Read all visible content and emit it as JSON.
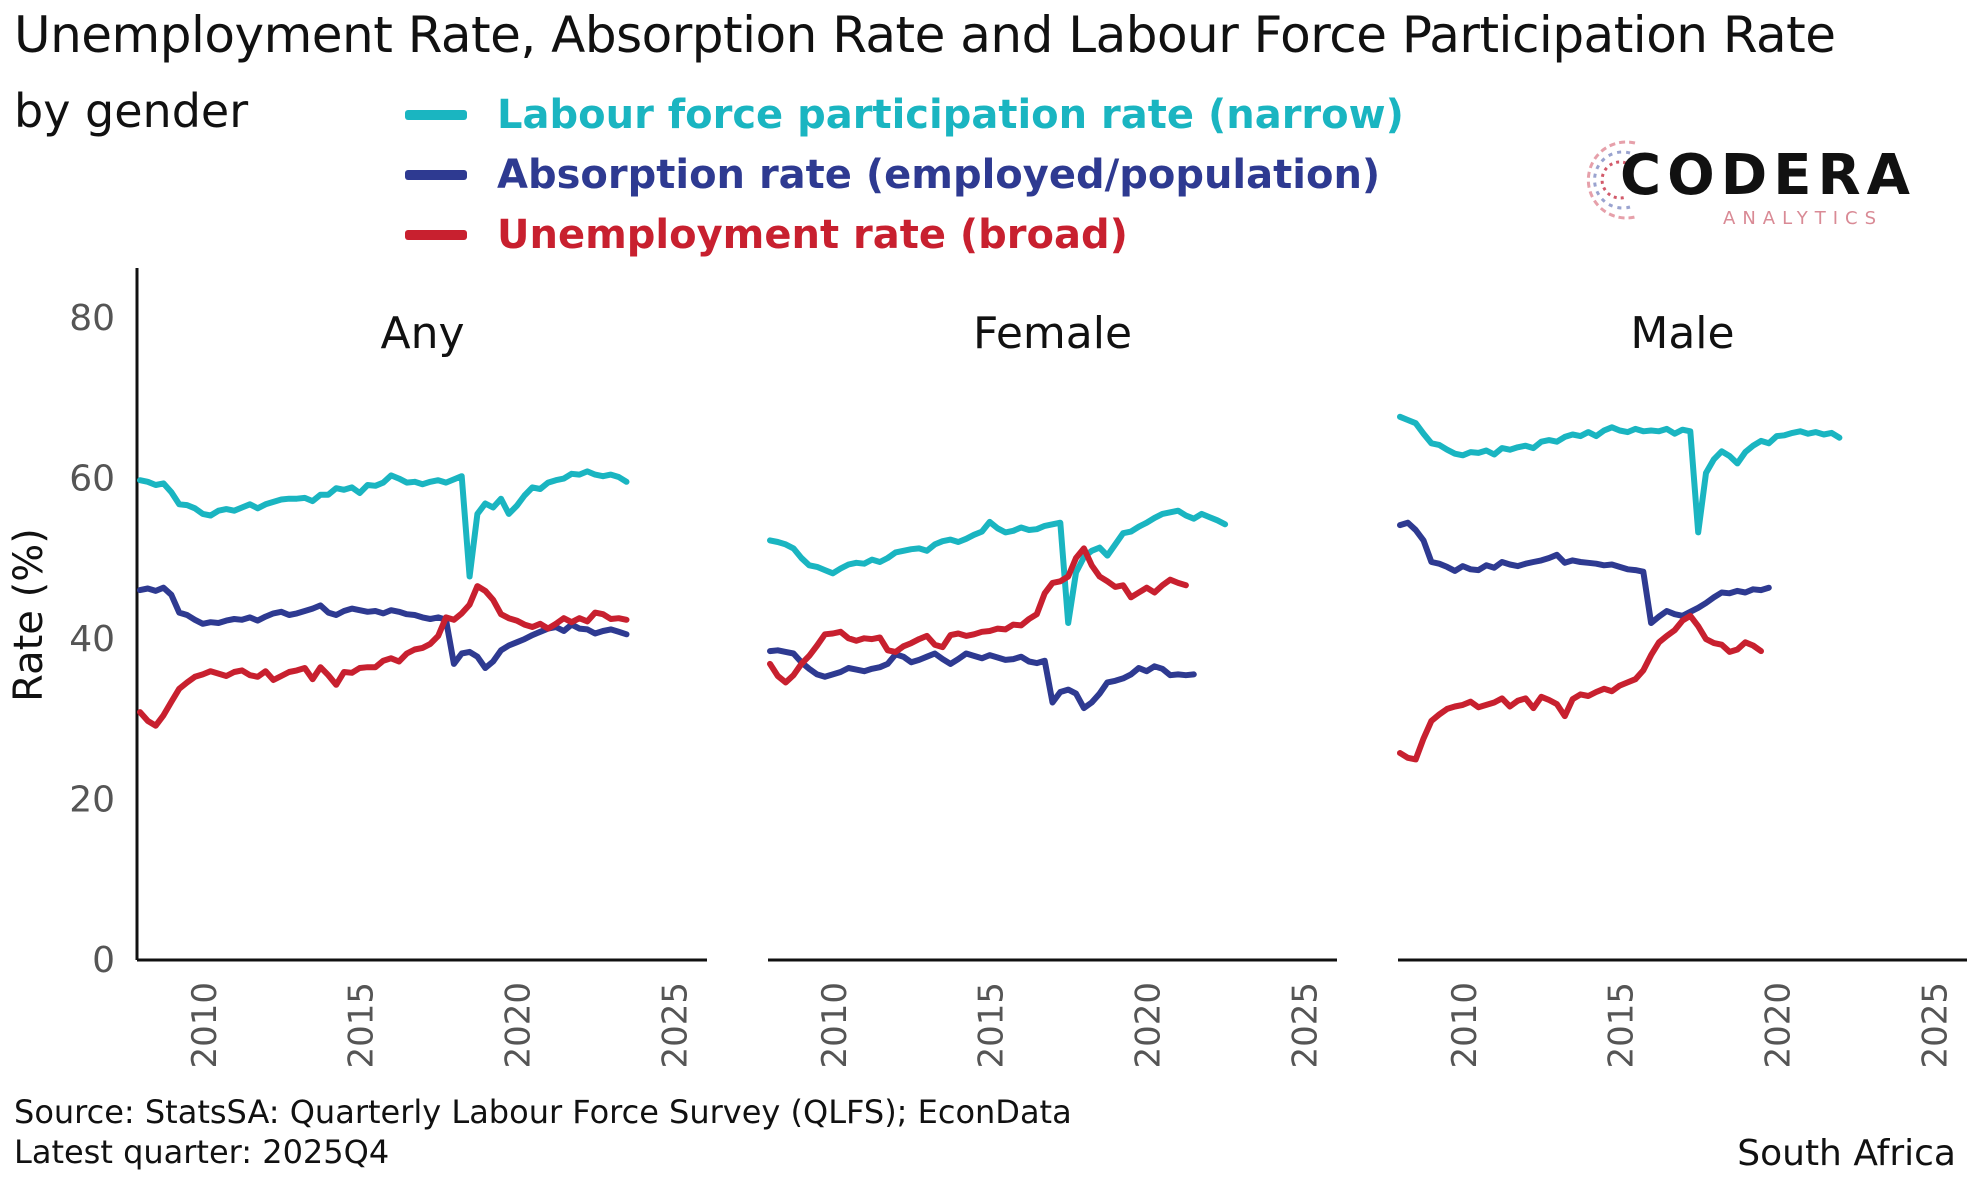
{
  "header": {
    "title": "Unemployment Rate, Absorption Rate and Labour Force Participation Rate",
    "subtitle": "by gender"
  },
  "legend": [
    {
      "label": "Labour force participation rate (narrow)",
      "color": "#1ab5c1"
    },
    {
      "label": "Absorption rate (employed/population)",
      "color": "#2e3a91"
    },
    {
      "label": "Unemployment rate (broad)",
      "color": "#c8202f"
    }
  ],
  "logo": {
    "name": "CODERA",
    "sub": "ANALYTICS"
  },
  "footer": {
    "source": "Source: StatsSA: Quarterly Labour Force Survey (QLFS); EconData",
    "latest": "Latest quarter: 2025Q4",
    "region": "South Africa"
  },
  "chart_data": {
    "type": "line",
    "ylabel": "Rate (%)",
    "ylim": [
      0,
      86
    ],
    "yticks": [
      0,
      20,
      40,
      60,
      80
    ],
    "xlim": [
      2008.0,
      2026.0
    ],
    "xticks": [
      2010,
      2015,
      2020,
      2025
    ],
    "x_start": 2008.0,
    "x_step": 0.25,
    "panels": [
      {
        "title": "Any",
        "series": [
          {
            "name": "Labour force participation rate (narrow)",
            "color": "#1ab5c1",
            "values": [
              59.8,
              59.6,
              59.2,
              59.4,
              58.3,
              56.8,
              56.7,
              56.3,
              55.6,
              55.4,
              56.0,
              56.2,
              56.0,
              56.4,
              56.8,
              56.3,
              56.8,
              57.1,
              57.4,
              57.5,
              57.5,
              57.6,
              57.2,
              58.0,
              58.0,
              58.8,
              58.6,
              58.9,
              58.2,
              59.2,
              59.1,
              59.5,
              60.4,
              60.0,
              59.5,
              59.6,
              59.3,
              59.6,
              59.8,
              59.5,
              59.9,
              60.3,
              47.8,
              55.6,
              56.9,
              56.4,
              57.5,
              55.6,
              56.6,
              57.9,
              58.9,
              58.7,
              59.5,
              59.8,
              60.0,
              60.6,
              60.5,
              60.9,
              60.5,
              60.3,
              60.5,
              60.2,
              59.6
            ]
          },
          {
            "name": "Absorption rate (employed/population)",
            "color": "#2e3a91",
            "values": [
              46.1,
              46.3,
              46.0,
              46.4,
              45.5,
              43.3,
              43.0,
              42.4,
              41.9,
              42.1,
              42.0,
              42.3,
              42.5,
              42.4,
              42.7,
              42.3,
              42.8,
              43.2,
              43.4,
              43.0,
              43.2,
              43.5,
              43.8,
              44.2,
              43.3,
              43.0,
              43.5,
              43.8,
              43.6,
              43.4,
              43.5,
              43.2,
              43.6,
              43.4,
              43.1,
              43.0,
              42.7,
              42.5,
              42.7,
              42.4,
              36.9,
              38.2,
              38.4,
              37.8,
              36.4,
              37.2,
              38.6,
              39.2,
              39.6,
              40.0,
              40.5,
              40.9,
              41.3,
              41.5,
              41.0,
              41.8,
              41.3,
              41.2,
              40.7,
              41.0,
              41.2,
              40.9,
              40.6
            ]
          },
          {
            "name": "Unemployment rate (broad)",
            "color": "#c8202f",
            "values": [
              30.9,
              29.8,
              29.2,
              30.5,
              32.2,
              33.8,
              34.6,
              35.3,
              35.6,
              36.0,
              35.7,
              35.4,
              35.9,
              36.1,
              35.5,
              35.3,
              36.0,
              34.9,
              35.4,
              35.9,
              36.1,
              36.4,
              35.0,
              36.5,
              35.5,
              34.3,
              35.9,
              35.8,
              36.4,
              36.5,
              36.5,
              37.3,
              37.6,
              37.2,
              38.2,
              38.7,
              38.9,
              39.4,
              40.4,
              42.7,
              42.4,
              43.2,
              44.3,
              46.6,
              46.0,
              44.9,
              43.1,
              42.6,
              42.3,
              41.8,
              41.5,
              41.9,
              41.3,
              41.9,
              42.6,
              42.1,
              42.6,
              42.2,
              43.3,
              43.1,
              42.5,
              42.6,
              42.4
            ]
          }
        ]
      },
      {
        "title": "Female",
        "series": [
          {
            "name": "Labour force participation rate (narrow)",
            "color": "#1ab5c1",
            "values": [
              52.3,
              52.1,
              51.8,
              51.3,
              50.1,
              49.2,
              49.0,
              48.6,
              48.2,
              48.8,
              49.3,
              49.5,
              49.4,
              49.9,
              49.6,
              50.1,
              50.8,
              51.0,
              51.2,
              51.3,
              51.0,
              51.8,
              52.2,
              52.4,
              52.1,
              52.5,
              53.0,
              53.4,
              54.6,
              53.8,
              53.3,
              53.5,
              53.9,
              53.6,
              53.7,
              54.1,
              54.3,
              54.5,
              42.0,
              48.3,
              50.2,
              51.0,
              51.4,
              50.4,
              51.8,
              53.2,
              53.4,
              54.0,
              54.5,
              55.1,
              55.6,
              55.8,
              56.0,
              55.4,
              55.0,
              55.6,
              55.2,
              54.8,
              54.3
            ]
          },
          {
            "name": "Absorption rate (employed/population)",
            "color": "#2e3a91",
            "values": [
              38.5,
              38.6,
              38.4,
              38.2,
              37.1,
              36.3,
              35.6,
              35.3,
              35.6,
              35.9,
              36.4,
              36.2,
              36.0,
              36.3,
              36.5,
              36.9,
              38.1,
              37.8,
              37.1,
              37.4,
              37.8,
              38.2,
              37.5,
              36.9,
              37.5,
              38.2,
              37.9,
              37.6,
              38.0,
              37.7,
              37.4,
              37.5,
              37.8,
              37.2,
              37.0,
              37.3,
              32.1,
              33.4,
              33.7,
              33.2,
              31.4,
              32.1,
              33.2,
              34.6,
              34.8,
              35.1,
              35.6,
              36.4,
              36.0,
              36.6,
              36.3,
              35.5,
              35.6,
              35.5,
              35.6
            ]
          },
          {
            "name": "Unemployment rate (broad)",
            "color": "#c8202f",
            "values": [
              36.9,
              35.4,
              34.6,
              35.5,
              36.9,
              37.9,
              39.2,
              40.6,
              40.7,
              40.9,
              40.1,
              39.8,
              40.1,
              40.0,
              40.2,
              38.6,
              38.4,
              39.1,
              39.5,
              40.0,
              40.4,
              39.3,
              39.0,
              40.5,
              40.7,
              40.4,
              40.6,
              40.9,
              41.0,
              41.3,
              41.2,
              41.8,
              41.7,
              42.5,
              43.1,
              45.7,
              47.0,
              47.2,
              47.8,
              50.1,
              51.3,
              49.2,
              47.8,
              47.2,
              46.5,
              46.7,
              45.2,
              45.8,
              46.4,
              45.8,
              46.7,
              47.4,
              47.0,
              46.7
            ]
          }
        ]
      },
      {
        "title": "Male",
        "series": [
          {
            "name": "Labour force participation rate (narrow)",
            "color": "#1ab5c1",
            "values": [
              67.7,
              67.3,
              66.9,
              65.6,
              64.4,
              64.2,
              63.6,
              63.1,
              62.9,
              63.3,
              63.2,
              63.5,
              63.0,
              63.8,
              63.6,
              63.9,
              64.1,
              63.8,
              64.6,
              64.8,
              64.6,
              65.2,
              65.5,
              65.3,
              65.8,
              65.3,
              66.0,
              66.4,
              66.0,
              65.8,
              66.2,
              65.9,
              66.0,
              65.9,
              66.2,
              65.6,
              66.1,
              65.9,
              53.3,
              60.7,
              62.4,
              63.4,
              62.8,
              61.9,
              63.3,
              64.1,
              64.7,
              64.4,
              65.3,
              65.4,
              65.7,
              65.9,
              65.6,
              65.8,
              65.5,
              65.7,
              65.1
            ]
          },
          {
            "name": "Absorption rate (employed/population)",
            "color": "#2e3a91",
            "values": [
              54.2,
              54.5,
              53.6,
              52.3,
              49.6,
              49.4,
              49.0,
              48.5,
              49.1,
              48.7,
              48.6,
              49.2,
              48.9,
              49.6,
              49.3,
              49.1,
              49.4,
              49.6,
              49.8,
              50.1,
              50.5,
              49.5,
              49.8,
              49.6,
              49.5,
              49.4,
              49.2,
              49.3,
              49.0,
              48.7,
              48.6,
              48.4,
              42.0,
              42.8,
              43.5,
              43.1,
              42.9,
              43.4,
              43.9,
              44.5,
              45.2,
              45.8,
              45.7,
              46.0,
              45.8,
              46.2,
              46.1,
              46.4
            ]
          },
          {
            "name": "Unemployment rate (broad)",
            "color": "#c8202f",
            "values": [
              25.8,
              25.2,
              25.0,
              27.6,
              29.8,
              30.6,
              31.3,
              31.6,
              31.8,
              32.2,
              31.5,
              31.8,
              32.1,
              32.6,
              31.6,
              32.3,
              32.6,
              31.4,
              32.8,
              32.4,
              31.9,
              30.4,
              32.5,
              33.1,
              32.9,
              33.4,
              33.8,
              33.5,
              34.2,
              34.6,
              35.0,
              36.1,
              38.0,
              39.6,
              40.4,
              41.1,
              42.3,
              42.9,
              41.6,
              40.0,
              39.5,
              39.3,
              38.4,
              38.7,
              39.6,
              39.2,
              38.5
            ]
          }
        ]
      }
    ]
  }
}
